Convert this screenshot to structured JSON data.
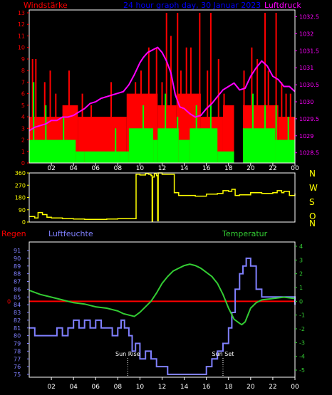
{
  "header": {
    "title": "24 hour graph day, 30 Januar 2023",
    "left_label": "Windstärke",
    "right_label": "Luftdruck"
  },
  "mid": {
    "compass_letters": [
      "N",
      "W",
      "S",
      "O",
      "N"
    ]
  },
  "bottom": {
    "regen_label": "Regen",
    "humidity_label": "Luftfeuchte",
    "temperature_label": "Temperatur",
    "sun_rise_label": "Sun Rise",
    "sun_set_label": "Sun Set"
  },
  "colors": {
    "background": "#000000",
    "axis": "#ffffff",
    "wind_gust": "#ff0000",
    "wind_avg": "#00ff00",
    "pressure": "#ff00ff",
    "direction": "#ffff00",
    "humidity": "#8080ff",
    "temperature": "#33cc33",
    "rain": "#ff0000",
    "title": "#0000ff"
  },
  "chart_data": [
    {
      "type": "bar",
      "name": "wind-pressure",
      "x_ticks": [
        "02",
        "04",
        "06",
        "08",
        "10",
        "12",
        "14",
        "16",
        "18",
        "20",
        "22",
        "00"
      ],
      "x_range": [
        0,
        24
      ],
      "ylim_left": [
        0,
        13
      ],
      "yticks_left": [
        0,
        1,
        2,
        3,
        4,
        5,
        6,
        7,
        8,
        9,
        10,
        11,
        12,
        13
      ],
      "ylim_right": [
        1028.2,
        1032.7
      ],
      "yticks_right": [
        1028.5,
        1029,
        1029.5,
        1030,
        1030.5,
        1031,
        1031.5,
        1032,
        1032.5
      ],
      "pressure_series": {
        "x": [
          0,
          0.5,
          1,
          1.5,
          2,
          2.5,
          3,
          3.5,
          4,
          4.5,
          5,
          5.5,
          6,
          6.5,
          7,
          7.5,
          8,
          8.5,
          9,
          9.5,
          10,
          10.3,
          10.7,
          11,
          11.3,
          11.6,
          12,
          12.4,
          12.8,
          13.2,
          13.6,
          14,
          14.5,
          15,
          15.5,
          16,
          16.5,
          17,
          17.5,
          18,
          18.5,
          19,
          19.5,
          20,
          20.5,
          21,
          21.5,
          22,
          22.5,
          23,
          23.5,
          24
        ],
        "y": [
          1029.15,
          1029.25,
          1029.3,
          1029.35,
          1029.45,
          1029.45,
          1029.55,
          1029.55,
          1029.6,
          1029.7,
          1029.8,
          1029.95,
          1030.0,
          1030.1,
          1030.15,
          1030.2,
          1030.25,
          1030.3,
          1030.5,
          1030.8,
          1031.15,
          1031.3,
          1031.45,
          1031.5,
          1031.55,
          1031.6,
          1031.45,
          1031.2,
          1030.85,
          1030.2,
          1029.85,
          1029.8,
          1029.65,
          1029.55,
          1029.6,
          1029.8,
          1029.95,
          1030.15,
          1030.35,
          1030.45,
          1030.55,
          1030.35,
          1030.4,
          1030.75,
          1031.0,
          1031.2,
          1031.05,
          1030.75,
          1030.65,
          1030.45,
          1030.45,
          1030.3
        ]
      },
      "wind_avg_segments": [
        {
          "from": 0,
          "to": 4.2,
          "value": 2
        },
        {
          "from": 4.2,
          "to": 5.0,
          "value": 1
        },
        {
          "from": 5.0,
          "to": 8.2,
          "value": 1
        },
        {
          "from": 8.2,
          "to": 9.0,
          "value": 1
        },
        {
          "from": 9.0,
          "to": 11.2,
          "value": 3
        },
        {
          "from": 11.2,
          "to": 11.6,
          "value": 2
        },
        {
          "from": 11.6,
          "to": 13.5,
          "value": 3
        },
        {
          "from": 13.5,
          "to": 14.5,
          "value": 2
        },
        {
          "from": 14.5,
          "to": 17.0,
          "value": 3
        },
        {
          "from": 17.0,
          "to": 18.5,
          "value": 1
        },
        {
          "from": 18.5,
          "to": 19.3,
          "value": 0
        },
        {
          "from": 19.3,
          "to": 22.2,
          "value": 3
        },
        {
          "from": 22.2,
          "to": 24,
          "value": 2
        }
      ],
      "wind_gust_segments": [
        {
          "from": 0,
          "to": 3.0,
          "value": 4
        },
        {
          "from": 3.0,
          "to": 4.4,
          "value": 5
        },
        {
          "from": 4.4,
          "to": 8.8,
          "value": 4
        },
        {
          "from": 8.8,
          "to": 11.6,
          "value": 6
        },
        {
          "from": 11.6,
          "to": 13.3,
          "value": 5
        },
        {
          "from": 13.3,
          "to": 15.5,
          "value": 6
        },
        {
          "from": 15.5,
          "to": 17.5,
          "value": 4
        },
        {
          "from": 17.5,
          "to": 18.5,
          "value": 5
        },
        {
          "from": 18.5,
          "to": 19.3,
          "value": 0
        },
        {
          "from": 19.3,
          "to": 22.5,
          "value": 5
        },
        {
          "from": 22.5,
          "to": 24,
          "value": 4
        }
      ],
      "gust_peaks": [
        {
          "x": 0.3,
          "y": 9
        },
        {
          "x": 0.6,
          "y": 9
        },
        {
          "x": 1.4,
          "y": 7
        },
        {
          "x": 1.9,
          "y": 8
        },
        {
          "x": 2.4,
          "y": 6
        },
        {
          "x": 3.6,
          "y": 8
        },
        {
          "x": 4.8,
          "y": 6
        },
        {
          "x": 5.6,
          "y": 5
        },
        {
          "x": 7.4,
          "y": 7
        },
        {
          "x": 9.6,
          "y": 7
        },
        {
          "x": 10.1,
          "y": 8
        },
        {
          "x": 10.8,
          "y": 10
        },
        {
          "x": 11.5,
          "y": 10
        },
        {
          "x": 12.0,
          "y": 7
        },
        {
          "x": 12.4,
          "y": 13
        },
        {
          "x": 12.8,
          "y": 11
        },
        {
          "x": 13.4,
          "y": 13
        },
        {
          "x": 13.7,
          "y": 8
        },
        {
          "x": 14.2,
          "y": 10
        },
        {
          "x": 14.6,
          "y": 10
        },
        {
          "x": 15.4,
          "y": 13
        },
        {
          "x": 16.1,
          "y": 8
        },
        {
          "x": 16.4,
          "y": 13
        },
        {
          "x": 17.1,
          "y": 9
        },
        {
          "x": 17.6,
          "y": 6
        },
        {
          "x": 19.4,
          "y": 8
        },
        {
          "x": 20.1,
          "y": 10
        },
        {
          "x": 20.6,
          "y": 9
        },
        {
          "x": 21.3,
          "y": 13
        },
        {
          "x": 21.6,
          "y": 8
        },
        {
          "x": 22.3,
          "y": 13
        },
        {
          "x": 22.8,
          "y": 7
        },
        {
          "x": 23.2,
          "y": 6
        },
        {
          "x": 23.6,
          "y": 6
        }
      ],
      "avg_peaks": [
        {
          "x": 0.4,
          "y": 7
        },
        {
          "x": 1.5,
          "y": 5
        },
        {
          "x": 3.1,
          "y": 4
        },
        {
          "x": 7.8,
          "y": 3
        },
        {
          "x": 10.3,
          "y": 5
        },
        {
          "x": 12.3,
          "y": 6
        },
        {
          "x": 13.4,
          "y": 4
        },
        {
          "x": 15.1,
          "y": 5
        },
        {
          "x": 16.4,
          "y": 5
        },
        {
          "x": 20.2,
          "y": 6
        },
        {
          "x": 21.3,
          "y": 5
        },
        {
          "x": 22.3,
          "y": 5
        },
        {
          "x": 23.4,
          "y": 4
        }
      ]
    },
    {
      "type": "line",
      "name": "wind-direction",
      "x_ticks": [
        "02",
        "04",
        "06",
        "08",
        "10",
        "12",
        "14",
        "16",
        "18",
        "20",
        "22",
        "00"
      ],
      "x_range": [
        0,
        24
      ],
      "ylim": [
        0,
        360
      ],
      "yticks": [
        0,
        90,
        180,
        270,
        360
      ],
      "x": [
        0,
        0.5,
        0.8,
        1.2,
        1.6,
        2.0,
        3.0,
        4.0,
        5.0,
        6.0,
        7.0,
        8.0,
        9.0,
        9.6,
        9.65,
        10.0,
        10.5,
        10.8,
        11.0,
        11.1,
        11.15,
        11.3,
        11.5,
        11.6,
        11.65,
        12.0,
        12.5,
        13.0,
        13.1,
        13.5,
        14.0,
        15.0,
        16.0,
        17.0,
        17.5,
        18.0,
        18.3,
        18.6,
        19.0,
        20.0,
        21.0,
        22.0,
        22.4,
        22.8,
        23.0,
        23.5,
        24.0
      ],
      "y": [
        40,
        30,
        70,
        55,
        35,
        30,
        25,
        22,
        20,
        20,
        22,
        25,
        25,
        25,
        350,
        345,
        355,
        350,
        340,
        5,
        330,
        355,
        340,
        10,
        365,
        350,
        350,
        350,
        215,
        195,
        195,
        190,
        205,
        210,
        230,
        225,
        240,
        195,
        200,
        215,
        210,
        215,
        230,
        215,
        225,
        195,
        210
      ]
    },
    {
      "type": "line",
      "name": "humidity-temperature",
      "x_ticks": [
        "02",
        "04",
        "06",
        "08",
        "10",
        "12",
        "14",
        "16",
        "18",
        "20",
        "22",
        "00"
      ],
      "x_range": [
        0,
        24
      ],
      "ylim_left": [
        75,
        91
      ],
      "yticks_left": [
        75,
        76,
        77,
        78,
        79,
        80,
        81,
        82,
        83,
        84,
        85,
        86,
        87,
        88,
        89,
        90,
        91
      ],
      "ylim_right": [
        -5,
        4
      ],
      "yticks_right": [
        -5,
        -4,
        -3,
        -2,
        -1,
        0,
        1,
        2,
        3,
        4
      ],
      "rain_level_label": "0",
      "rain_series": {
        "x": [
          0,
          24
        ],
        "y": [
          0,
          0
        ]
      },
      "humidity": {
        "x": [
          0,
          0.5,
          1,
          2,
          2.5,
          3,
          3.5,
          4,
          4.5,
          5,
          5.5,
          6,
          6.5,
          7,
          7.5,
          8,
          8.3,
          8.6,
          9,
          9.3,
          9.6,
          10,
          10.5,
          11,
          11.5,
          12,
          12.5,
          13,
          13.5,
          14,
          15,
          15.5,
          16,
          16.5,
          17,
          17.5,
          18,
          18.3,
          18.6,
          19,
          19.3,
          19.6,
          20,
          20.5,
          21,
          22,
          23,
          24
        ],
        "y": [
          81,
          80,
          80,
          80,
          81,
          80,
          81,
          82,
          81,
          82,
          81,
          82,
          81,
          81,
          80,
          81,
          82,
          81,
          80,
          78,
          79,
          77,
          78,
          77,
          76,
          76,
          75,
          75,
          75,
          75,
          75,
          75,
          76,
          77,
          78,
          79,
          81,
          83,
          86,
          88,
          89,
          90,
          89,
          86,
          85,
          85,
          85,
          84
        ]
      },
      "temperature": {
        "x": [
          0,
          1,
          2,
          3,
          4,
          5,
          6,
          7,
          8,
          8.5,
          9,
          9.5,
          10,
          10.5,
          11,
          11.5,
          12,
          12.5,
          13,
          13.5,
          14,
          14.5,
          15,
          15.5,
          16,
          16.5,
          17,
          17.5,
          18,
          18.5,
          19,
          19.2,
          19.5,
          20,
          20.5,
          21,
          22,
          23,
          24
        ],
        "y": [
          0.8,
          0.5,
          0.3,
          0.1,
          -0.1,
          -0.2,
          -0.4,
          -0.5,
          -0.7,
          -0.9,
          -1.0,
          -1.1,
          -0.8,
          -0.4,
          0.0,
          0.6,
          1.3,
          1.8,
          2.2,
          2.4,
          2.6,
          2.7,
          2.6,
          2.4,
          2.1,
          1.8,
          1.3,
          0.5,
          -0.5,
          -1.3,
          -1.6,
          -1.7,
          -1.5,
          -0.5,
          -0.1,
          0.1,
          0.2,
          0.3,
          0.2
        ]
      },
      "sun_rise_x": 8.9,
      "sun_set_x": 17.5
    }
  ]
}
